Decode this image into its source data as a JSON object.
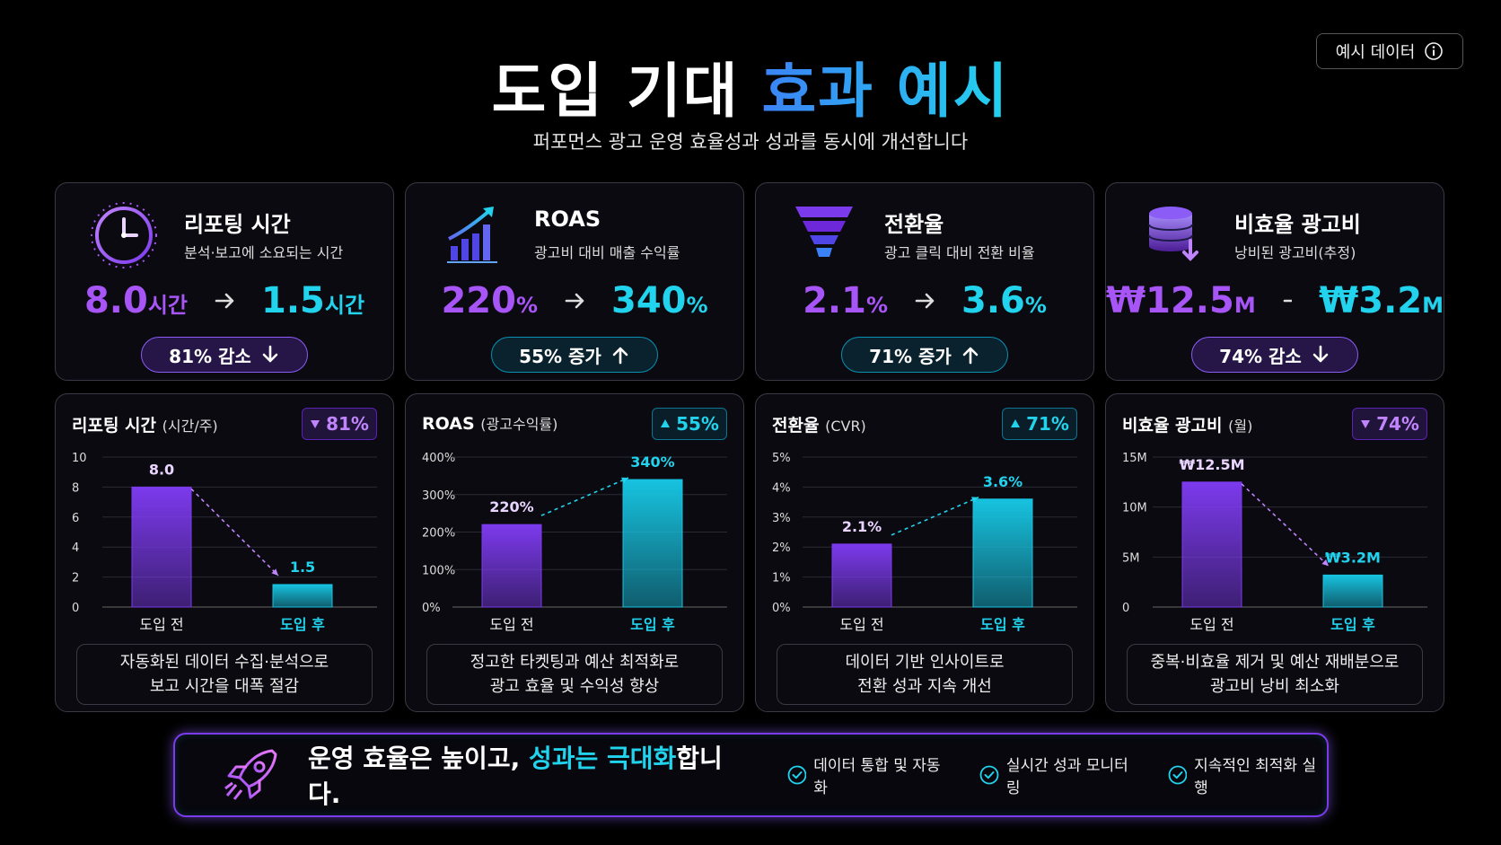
{
  "header": {
    "title_a": "도입 기대",
    "title_b": "효과 예시",
    "subtitle": "퍼포먼스 광고 운영 효율성과 성과를 동시에 개선합니다",
    "badge": "예시 데이터"
  },
  "kpis": [
    {
      "title": "리포팅 시간",
      "desc": "분석·보고에 소요되는 시간",
      "before": "8.0",
      "before_unit": "시간",
      "after": "1.5",
      "after_unit": "시간",
      "change": "81% 감소",
      "direction": "down",
      "icon": "clock"
    },
    {
      "title": "ROAS",
      "desc": "광고비 대비 매출 수익률",
      "before": "220",
      "before_unit": "%",
      "after": "340",
      "after_unit": "%",
      "change": "55% 증가",
      "direction": "up",
      "icon": "growth"
    },
    {
      "title": "전환율",
      "desc": "광고 클릭 대비 전환 비율",
      "before": "2.1",
      "before_unit": "%",
      "after": "3.6",
      "after_unit": "%",
      "change": "71% 증가",
      "direction": "up",
      "icon": "funnel"
    },
    {
      "title": "비효율 광고비",
      "desc": "낭비된 광고비(추정)",
      "before": "₩12.5",
      "before_unit": "M",
      "after": "₩3.2",
      "after_unit": "M",
      "change": "74% 감소",
      "direction": "down",
      "icon": "database"
    }
  ],
  "chart_data": [
    {
      "type": "bar",
      "title": "리포팅 시간",
      "unit": "(시간/주)",
      "badge": "81%",
      "direction": "down",
      "categories": [
        "도입 전",
        "도입 후"
      ],
      "values": [
        8.0,
        1.5
      ],
      "value_labels": [
        "8.0",
        "1.5"
      ],
      "colors": [
        "#7c3aed",
        "#17c3e0"
      ],
      "ylim": [
        0,
        10
      ],
      "yticks": [
        0,
        2,
        4,
        6,
        8,
        10
      ],
      "grid": true,
      "note": [
        "자동화된 데이터 수집·분석으로",
        "보고 시간을 대폭 절감"
      ]
    },
    {
      "type": "bar",
      "title": "ROAS",
      "unit": "(광고수익률)",
      "badge": "55%",
      "direction": "up",
      "categories": [
        "도입 전",
        "도입 후"
      ],
      "values": [
        220,
        340
      ],
      "value_labels": [
        "220%",
        "340%"
      ],
      "colors": [
        "#7c3aed",
        "#17c3e0"
      ],
      "ylim": [
        0,
        400
      ],
      "yticks": [
        {
          "value": 0,
          "label": "0%"
        },
        {
          "value": 100,
          "label": "100%"
        },
        {
          "value": 200,
          "label": "200%"
        },
        {
          "value": 300,
          "label": "300%"
        },
        {
          "value": 400,
          "label": "400%"
        }
      ],
      "grid": true,
      "note": [
        "정고한 타켓팅과 예산 최적화로",
        "광고 효율 및 수익성 향상"
      ]
    },
    {
      "type": "bar",
      "title": "전환율",
      "unit": "(CVR)",
      "badge": "71%",
      "direction": "up",
      "categories": [
        "도입 전",
        "도입 후"
      ],
      "values": [
        2.1,
        3.6
      ],
      "value_labels": [
        "2.1%",
        "3.6%"
      ],
      "colors": [
        "#7c3aed",
        "#17c3e0"
      ],
      "ylim": [
        0,
        5
      ],
      "yticks": [
        {
          "value": 0,
          "label": "0%"
        },
        {
          "value": 1,
          "label": "1%"
        },
        {
          "value": 2,
          "label": "2%"
        },
        {
          "value": 3,
          "label": "3%"
        },
        {
          "value": 4,
          "label": "4%"
        },
        {
          "value": 5,
          "label": "5%"
        }
      ],
      "grid": true,
      "note": [
        "데이터 기반 인사이트로",
        "전환 성과 지속 개선"
      ]
    },
    {
      "type": "bar",
      "title": "비효율 광고비",
      "unit": "(월)",
      "badge": "74%",
      "direction": "down",
      "categories": [
        "도입 전",
        "도입 후"
      ],
      "values": [
        12.5,
        3.2
      ],
      "value_labels": [
        "₩12.5M",
        "₩3.2M"
      ],
      "colors": [
        "#7c3aed",
        "#17c3e0"
      ],
      "ylim": [
        0,
        15
      ],
      "yticks": [
        0,
        {
          "value": 5,
          "label": "5M"
        },
        {
          "value": 10,
          "label": "10M"
        },
        {
          "value": 15,
          "label": "15M"
        }
      ],
      "grid": true,
      "note": [
        "중복·비효율 제거 및 예산 재배분으로",
        "광고비 낭비 최소화"
      ]
    }
  ],
  "footer": {
    "text_a": "운영 효율은 높이고, ",
    "text_b": "성과는 극대화",
    "text_c": "합니다.",
    "checks": [
      "데이터 통합 및 자동화",
      "실시간 성과 모니터링",
      "지속적인 최적화 실행"
    ]
  }
}
